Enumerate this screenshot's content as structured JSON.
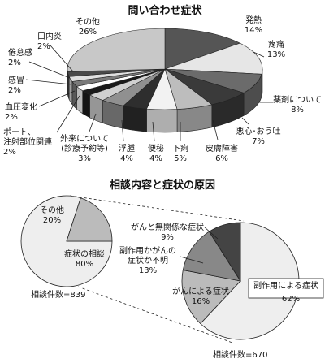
{
  "chart_data": [
    {
      "type": "pie",
      "title": "問い合わせ症状",
      "slices": [
        {
          "label": "発熱",
          "value": 14,
          "text": "14%",
          "color": "#555555"
        },
        {
          "label": "疼痛",
          "value": 13,
          "text": "13%",
          "color": "#e6e6e6"
        },
        {
          "label": "薬剤について",
          "value": 8,
          "text": "8%",
          "color": "#6b6b6b"
        },
        {
          "label": "悪心･おう吐",
          "value": 7,
          "text": "7%",
          "color": "#3a3a3a"
        },
        {
          "label": "皮膚障害",
          "value": 6,
          "text": "6%",
          "color": "#bdbdbd"
        },
        {
          "label": "下痢",
          "value": 5,
          "text": "5%",
          "color": "#f2f2f2"
        },
        {
          "label": "便秘",
          "value": 4,
          "text": "4%",
          "color": "#2e2e2e"
        },
        {
          "label": "浮腫",
          "value": 4,
          "text": "4%",
          "color": "#909090"
        },
        {
          "label": "外来について\n(診療予約等)",
          "value": 3,
          "text": "3%",
          "color": "#d0d0d0"
        },
        {
          "label": "ポート、\n注射部位関連",
          "value": 2,
          "text": "2%",
          "color": "#1a1a1a"
        },
        {
          "label": "血圧変化",
          "value": 2,
          "text": "2%",
          "color": "#ffffff"
        },
        {
          "label": "感冒",
          "value": 2,
          "text": "2%",
          "color": "#7a7a7a"
        },
        {
          "label": "倦怠感",
          "value": 2,
          "text": "2%",
          "color": "#e0e0e0"
        },
        {
          "label": "口内炎",
          "value": 2,
          "text": "2%",
          "color": "#4a4a4a"
        },
        {
          "label": "その他",
          "value": 26,
          "text": "26%",
          "color": "#c8c8c8"
        }
      ]
    },
    {
      "type": "pie",
      "title": "相談内容と症状の原因",
      "note": "相談件数=839",
      "slices": [
        {
          "label": "症状の相談",
          "value": 80,
          "text": "80%",
          "color": "#eeeeee"
        },
        {
          "label": "その他",
          "value": 20,
          "text": "20%",
          "color": "#bbbbbb"
        }
      ]
    },
    {
      "type": "pie",
      "note": "相談件数=670",
      "slices": [
        {
          "label": "副作用による症状",
          "value": 62,
          "text": "62%",
          "color": "#eeeeee"
        },
        {
          "label": "がんによる症状",
          "value": 16,
          "text": "16%",
          "color": "#bbbbbb"
        },
        {
          "label": "副作用かがんの\n症状か不明",
          "value": 13,
          "text": "13%",
          "color": "#888888"
        },
        {
          "label": "がんと無関係な症状",
          "value": 9,
          "text": "9%",
          "color": "#444444"
        }
      ]
    }
  ]
}
